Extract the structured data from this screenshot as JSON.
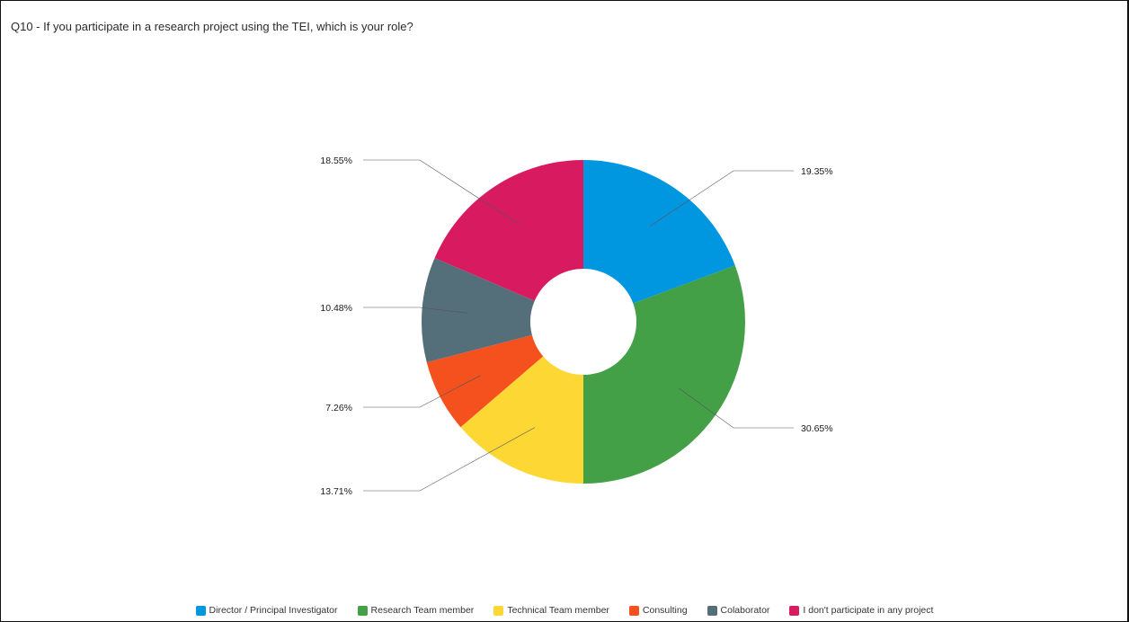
{
  "question": {
    "title": "Q10 - If you participate in a research project using the TEI, which is your role?"
  },
  "chart_data": {
    "type": "pie",
    "donut": true,
    "title": "Q10 - If you participate in a research project using the TEI, which is your role?",
    "categories": [
      "Director / Principal Investigator",
      "Research Team member",
      "Technical Team member",
      "Consulting",
      "Colaborator",
      "I don't participate in any project"
    ],
    "values": [
      19.35,
      30.65,
      13.71,
      7.26,
      10.48,
      18.55
    ],
    "labels": [
      "19.35%",
      "30.65%",
      "13.71%",
      "7.26%",
      "10.48%",
      "18.55%"
    ],
    "colors": [
      "#0097e0",
      "#43a047",
      "#fdd835",
      "#f4511e",
      "#546e7a",
      "#d81b60"
    ],
    "legend_position": "bottom"
  }
}
